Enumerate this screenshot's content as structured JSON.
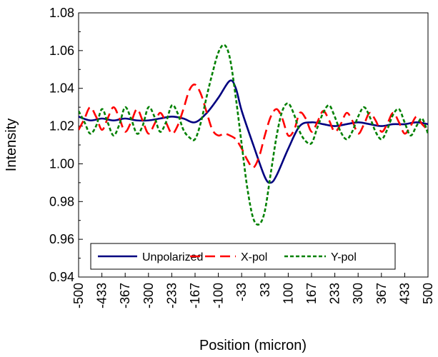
{
  "chart_data": {
    "type": "line",
    "title": "",
    "xlabel": "Position (micron)",
    "ylabel": "Intensity",
    "xlim": [
      -500,
      500
    ],
    "ylim": [
      0.94,
      1.08
    ],
    "x_ticks": [
      "-500",
      "-433",
      "-367",
      "-300",
      "-233",
      "-167",
      "-100",
      "-33",
      "33",
      "100",
      "167",
      "233",
      "300",
      "367",
      "433",
      "500"
    ],
    "y_ticks": [
      "0.94",
      "0.96",
      "0.98",
      "1.00",
      "1.02",
      "1.04",
      "1.06",
      "1.08"
    ],
    "grid": false,
    "legend_position": "bottom-left",
    "series": [
      {
        "name": "Unpolarized",
        "color": "#000080",
        "dash": "solid",
        "x": [
          -500,
          -467,
          -433,
          -400,
          -367,
          -333,
          -300,
          -267,
          -233,
          -200,
          -167,
          -133,
          -100,
          -67,
          -50,
          -33,
          0,
          33,
          50,
          67,
          100,
          133,
          167,
          200,
          233,
          267,
          300,
          333,
          367,
          400,
          433,
          467,
          500
        ],
        "y": [
          1.025,
          1.023,
          1.024,
          1.023,
          1.024,
          1.023,
          1.023,
          1.024,
          1.025,
          1.024,
          1.022,
          1.027,
          1.035,
          1.044,
          1.04,
          1.028,
          1.01,
          0.993,
          0.99,
          0.994,
          1.008,
          1.02,
          1.022,
          1.021,
          1.02,
          1.021,
          1.022,
          1.021,
          1.02,
          1.021,
          1.021,
          1.022,
          1.021
        ]
      },
      {
        "name": "X-pol",
        "color": "#ff0000",
        "dash": "long-dash",
        "x": [
          -500,
          -483,
          -467,
          -450,
          -433,
          -417,
          -400,
          -383,
          -367,
          -350,
          -333,
          -317,
          -300,
          -283,
          -267,
          -250,
          -233,
          -217,
          -200,
          -183,
          -167,
          -150,
          -133,
          -117,
          -100,
          -83,
          -67,
          -50,
          -33,
          -17,
          0,
          17,
          33,
          50,
          67,
          83,
          100,
          117,
          133,
          150,
          167,
          183,
          200,
          217,
          233,
          250,
          267,
          283,
          300,
          317,
          333,
          350,
          367,
          383,
          400,
          417,
          433,
          450,
          467,
          483,
          500
        ],
        "y": [
          1.018,
          1.024,
          1.03,
          1.025,
          1.018,
          1.024,
          1.03,
          1.024,
          1.017,
          1.022,
          1.029,
          1.023,
          1.016,
          1.021,
          1.027,
          1.022,
          1.016,
          1.02,
          1.029,
          1.039,
          1.042,
          1.037,
          1.027,
          1.018,
          1.015,
          1.016,
          1.015,
          1.013,
          1.008,
          1.002,
          0.998,
          1.004,
          1.015,
          1.025,
          1.029,
          1.024,
          1.015,
          1.018,
          1.027,
          1.024,
          1.017,
          1.022,
          1.028,
          1.023,
          1.017,
          1.021,
          1.027,
          1.023,
          1.016,
          1.021,
          1.027,
          1.023,
          1.017,
          1.021,
          1.027,
          1.022,
          1.016,
          1.02,
          1.025,
          1.021,
          1.018
        ]
      },
      {
        "name": "Y-pol",
        "color": "#008000",
        "dash": "short-dash",
        "x": [
          -500,
          -483,
          -467,
          -450,
          -433,
          -417,
          -400,
          -383,
          -367,
          -350,
          -333,
          -317,
          -300,
          -283,
          -267,
          -250,
          -233,
          -217,
          -200,
          -183,
          -167,
          -150,
          -133,
          -117,
          -100,
          -83,
          -67,
          -50,
          -33,
          -17,
          0,
          17,
          33,
          50,
          67,
          83,
          100,
          117,
          133,
          150,
          167,
          183,
          200,
          217,
          233,
          250,
          267,
          283,
          300,
          317,
          333,
          350,
          367,
          383,
          400,
          417,
          433,
          450,
          467,
          483,
          500
        ],
        "y": [
          1.028,
          1.022,
          1.016,
          1.02,
          1.029,
          1.022,
          1.015,
          1.021,
          1.03,
          1.024,
          1.016,
          1.02,
          1.03,
          1.025,
          1.017,
          1.022,
          1.031,
          1.027,
          1.018,
          1.014,
          1.013,
          1.022,
          1.036,
          1.048,
          1.059,
          1.063,
          1.056,
          1.035,
          1.01,
          0.987,
          0.971,
          0.968,
          0.975,
          0.995,
          1.015,
          1.028,
          1.032,
          1.026,
          1.017,
          1.012,
          1.011,
          1.019,
          1.027,
          1.031,
          1.025,
          1.017,
          1.013,
          1.017,
          1.025,
          1.03,
          1.025,
          1.017,
          1.013,
          1.018,
          1.026,
          1.029,
          1.022,
          1.015,
          1.02,
          1.024,
          1.016
        ]
      }
    ]
  }
}
